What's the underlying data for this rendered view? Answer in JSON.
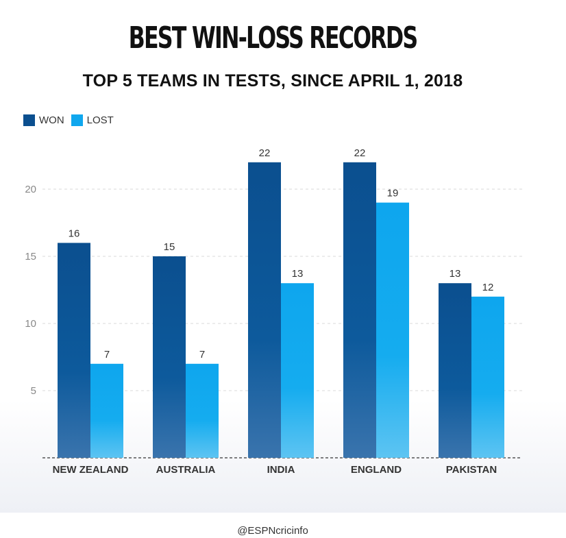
{
  "title": "BEST WIN-LOSS RECORDS",
  "subtitle": "TOP 5 TEAMS IN TESTS, SINCE APRIL 1, 2018",
  "footer": "@ESPNcricinfo",
  "colors": {
    "won": "#0b4f8f",
    "lost": "#10a7ee"
  },
  "chart_data": {
    "type": "bar",
    "title": "BEST WIN-LOSS RECORDS",
    "subtitle": "TOP 5 TEAMS IN TESTS, SINCE APRIL 1, 2018",
    "categories": [
      "NEW ZEALAND",
      "AUSTRALIA",
      "INDIA",
      "ENGLAND",
      "PAKISTAN"
    ],
    "series": [
      {
        "name": "WON",
        "values": [
          16,
          15,
          22,
          22,
          13
        ]
      },
      {
        "name": "LOST",
        "values": [
          7,
          7,
          13,
          19,
          12
        ]
      }
    ],
    "yticks": [
      5,
      10,
      15,
      20
    ],
    "ylim": [
      0,
      22
    ],
    "grid": true,
    "legend_position": "top-left",
    "xlabel": "",
    "ylabel": ""
  }
}
